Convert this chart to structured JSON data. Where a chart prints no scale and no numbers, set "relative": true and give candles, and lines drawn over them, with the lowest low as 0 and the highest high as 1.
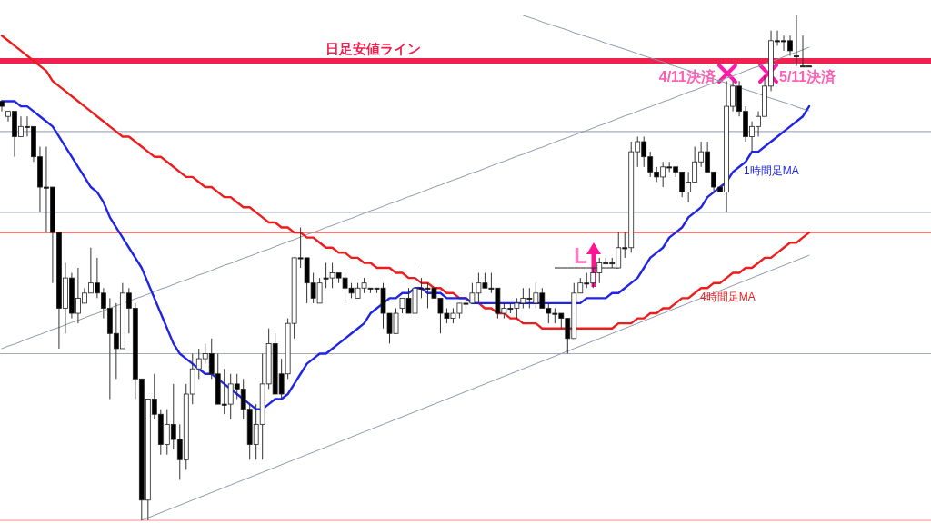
{
  "chart_data": {
    "type": "candlestick",
    "relative": true,
    "categories": [
      null,
      null,
      null,
      null,
      null,
      null,
      null,
      null,
      null,
      null,
      null,
      null,
      null,
      null,
      null,
      null,
      null,
      null,
      null,
      null,
      null,
      null,
      null,
      null,
      null,
      null,
      null,
      null,
      null,
      null,
      null,
      null,
      null,
      null,
      null,
      null,
      null,
      null,
      null,
      null,
      null,
      null,
      null,
      null,
      null,
      null,
      null,
      null,
      null,
      null,
      null,
      null,
      null,
      null,
      null,
      null,
      null,
      null,
      null,
      null,
      null,
      null,
      null,
      null,
      null,
      null,
      null,
      null,
      null,
      null,
      null,
      null,
      null,
      null,
      null,
      null,
      null,
      null,
      null,
      null,
      null,
      null,
      null,
      null,
      null,
      null,
      null,
      null,
      null,
      null,
      null,
      null,
      null,
      null,
      null,
      null,
      null,
      null,
      null,
      null,
      null,
      null,
      null,
      null,
      null,
      null,
      null,
      null,
      null,
      null,
      null,
      null,
      null,
      null,
      null,
      null,
      null,
      null,
      null,
      null,
      null,
      null,
      null,
      null,
      null,
      null,
      null,
      null
    ],
    "ohlc": [
      [
        0.83,
        0.83,
        0.81,
        0.82
      ],
      [
        0.8,
        0.81,
        0.79,
        0.81
      ],
      [
        0.81,
        0.81,
        0.72,
        0.76
      ],
      [
        0.76,
        0.8,
        0.76,
        0.78
      ],
      [
        0.78,
        0.8,
        0.76,
        0.78
      ],
      [
        0.78,
        0.78,
        0.71,
        0.72
      ],
      [
        0.72,
        0.74,
        0.61,
        0.66
      ],
      [
        0.66,
        0.74,
        0.57,
        0.66
      ],
      [
        0.66,
        0.66,
        0.47,
        0.57
      ],
      [
        0.57,
        0.57,
        0.34,
        0.42
      ],
      [
        0.42,
        0.51,
        0.37,
        0.48
      ],
      [
        0.48,
        0.49,
        0.4,
        0.41
      ],
      [
        0.41,
        0.5,
        0.39,
        0.44
      ],
      [
        0.43,
        0.46,
        0.43,
        0.45
      ],
      [
        0.45,
        0.54,
        0.45,
        0.47
      ],
      [
        0.47,
        0.52,
        0.44,
        0.45
      ],
      [
        0.45,
        0.46,
        0.4,
        0.42
      ],
      [
        0.42,
        0.44,
        0.24,
        0.37
      ],
      [
        0.37,
        0.43,
        0.28,
        0.34
      ],
      [
        0.34,
        0.47,
        0.34,
        0.45
      ],
      [
        0.45,
        0.46,
        0.37,
        0.42
      ],
      [
        0.42,
        0.43,
        0.24,
        0.28
      ],
      [
        0.28,
        0.28,
        0.0,
        0.04
      ],
      [
        0.04,
        0.24,
        0.0,
        0.24
      ],
      [
        0.24,
        0.29,
        0.2,
        0.21
      ],
      [
        0.21,
        0.22,
        0.13,
        0.15
      ],
      [
        0.15,
        0.22,
        0.13,
        0.19
      ],
      [
        0.19,
        0.27,
        0.14,
        0.16
      ],
      [
        0.16,
        0.19,
        0.08,
        0.12
      ],
      [
        0.12,
        0.27,
        0.1,
        0.25
      ],
      [
        0.25,
        0.33,
        0.23,
        0.3
      ],
      [
        0.3,
        0.34,
        0.28,
        0.32
      ],
      [
        0.32,
        0.35,
        0.31,
        0.33
      ],
      [
        0.33,
        0.36,
        0.28,
        0.29
      ],
      [
        0.29,
        0.33,
        0.23,
        0.23
      ],
      [
        0.23,
        0.3,
        0.21,
        0.23
      ],
      [
        0.23,
        0.29,
        0.2,
        0.27
      ],
      [
        0.27,
        0.29,
        0.24,
        0.26
      ],
      [
        0.26,
        0.28,
        0.2,
        0.22
      ],
      [
        0.22,
        0.23,
        0.12,
        0.15
      ],
      [
        0.15,
        0.23,
        0.12,
        0.19
      ],
      [
        0.19,
        0.33,
        0.12,
        0.27
      ],
      [
        0.27,
        0.38,
        0.26,
        0.35
      ],
      [
        0.35,
        0.37,
        0.25,
        0.25
      ],
      [
        0.29,
        0.32,
        0.24,
        0.25
      ],
      [
        0.29,
        0.4,
        0.28,
        0.39
      ],
      [
        0.39,
        0.52,
        0.36,
        0.52
      ],
      [
        0.52,
        0.58,
        0.5,
        0.52
      ],
      [
        0.52,
        0.52,
        0.43,
        0.47
      ],
      [
        0.47,
        0.49,
        0.43,
        0.44
      ],
      [
        0.43,
        0.48,
        0.43,
        0.47
      ],
      [
        0.48,
        0.51,
        0.46,
        0.48
      ],
      [
        0.48,
        0.51,
        0.46,
        0.49
      ],
      [
        0.49,
        0.49,
        0.47,
        0.48
      ],
      [
        0.48,
        0.49,
        0.43,
        0.46
      ],
      [
        0.46,
        0.47,
        0.44,
        0.45
      ],
      [
        0.44,
        0.47,
        0.44,
        0.46
      ],
      [
        0.46,
        0.48,
        0.45,
        0.47
      ],
      [
        0.46,
        0.46,
        0.45,
        0.46
      ],
      [
        0.46,
        0.46,
        0.45,
        0.46
      ],
      [
        0.46,
        0.47,
        0.38,
        0.41
      ],
      [
        0.41,
        0.41,
        0.35,
        0.37
      ],
      [
        0.37,
        0.42,
        0.37,
        0.41
      ],
      [
        0.42,
        0.44,
        0.41,
        0.44
      ],
      [
        0.44,
        0.46,
        0.41,
        0.41
      ],
      [
        0.41,
        0.51,
        0.41,
        0.46
      ],
      [
        0.46,
        0.48,
        0.44,
        0.46
      ],
      [
        0.46,
        0.47,
        0.42,
        0.46
      ],
      [
        0.46,
        0.46,
        0.44,
        0.44
      ],
      [
        0.44,
        0.44,
        0.37,
        0.41
      ],
      [
        0.41,
        0.42,
        0.39,
        0.4
      ],
      [
        0.4,
        0.42,
        0.39,
        0.41
      ],
      [
        0.41,
        0.43,
        0.4,
        0.43
      ],
      [
        0.43,
        0.44,
        0.42,
        0.43
      ],
      [
        0.43,
        0.47,
        0.43,
        0.45
      ],
      [
        0.45,
        0.49,
        0.43,
        0.47
      ],
      [
        0.47,
        0.49,
        0.46,
        0.46
      ],
      [
        0.46,
        0.49,
        0.45,
        0.46
      ],
      [
        0.46,
        0.46,
        0.4,
        0.41
      ],
      [
        0.41,
        0.43,
        0.4,
        0.42
      ],
      [
        0.42,
        0.43,
        0.41,
        0.42
      ],
      [
        0.42,
        0.44,
        0.4,
        0.43
      ],
      [
        0.43,
        0.46,
        0.42,
        0.44
      ],
      [
        0.44,
        0.46,
        0.42,
        0.44
      ],
      [
        0.43,
        0.47,
        0.42,
        0.45
      ],
      [
        0.45,
        0.46,
        0.42,
        0.42
      ],
      [
        0.42,
        0.43,
        0.39,
        0.41
      ],
      [
        0.41,
        0.42,
        0.39,
        0.41
      ],
      [
        0.41,
        0.41,
        0.38,
        0.4
      ],
      [
        0.4,
        0.4,
        0.33,
        0.36
      ],
      [
        0.36,
        0.47,
        0.36,
        0.45
      ],
      [
        0.45,
        0.48,
        0.45,
        0.47
      ],
      [
        0.47,
        0.49,
        0.46,
        0.47
      ],
      [
        0.47,
        0.5,
        0.46,
        0.49
      ],
      [
        0.49,
        0.52,
        0.47,
        0.51
      ],
      [
        0.51,
        0.52,
        0.51,
        0.51
      ],
      [
        0.51,
        0.52,
        0.5,
        0.51
      ],
      [
        0.5,
        0.57,
        0.5,
        0.54
      ],
      [
        0.54,
        0.57,
        0.52,
        0.54
      ],
      [
        0.54,
        0.75,
        0.53,
        0.73
      ],
      [
        0.73,
        0.76,
        0.7,
        0.75
      ],
      [
        0.75,
        0.76,
        0.7,
        0.72
      ],
      [
        0.72,
        0.73,
        0.68,
        0.69
      ],
      [
        0.69,
        0.7,
        0.67,
        0.68
      ],
      [
        0.68,
        0.71,
        0.66,
        0.7
      ],
      [
        0.7,
        0.71,
        0.69,
        0.7
      ],
      [
        0.7,
        0.7,
        0.68,
        0.69
      ],
      [
        0.69,
        0.69,
        0.64,
        0.65
      ],
      [
        0.65,
        0.69,
        0.63,
        0.67
      ],
      [
        0.67,
        0.74,
        0.67,
        0.71
      ],
      [
        0.71,
        0.75,
        0.7,
        0.73
      ],
      [
        0.73,
        0.75,
        0.69,
        0.69
      ],
      [
        0.69,
        0.69,
        0.65,
        0.66
      ],
      [
        0.66,
        0.66,
        0.65,
        0.65
      ],
      [
        0.65,
        0.87,
        0.61,
        0.82
      ],
      [
        0.82,
        0.87,
        0.81,
        0.86
      ],
      [
        0.86,
        0.87,
        0.8,
        0.81
      ],
      [
        0.81,
        0.82,
        0.75,
        0.76
      ],
      [
        0.76,
        0.79,
        0.73,
        0.78
      ],
      [
        0.78,
        0.81,
        0.76,
        0.8
      ],
      [
        0.8,
        0.88,
        0.8,
        0.86
      ],
      [
        0.86,
        0.97,
        0.85,
        0.95
      ],
      [
        0.95,
        0.97,
        0.94,
        0.95
      ],
      [
        0.95,
        0.96,
        0.93,
        0.95
      ],
      [
        0.95,
        0.96,
        0.92,
        0.93
      ],
      [
        0.92,
        1.0,
        0.9,
        0.92
      ],
      [
        0.9,
        0.96,
        0.9,
        0.9
      ],
      [
        0.9,
        0.9,
        0.9,
        0.9
      ]
    ],
    "series": [
      {
        "type": "line",
        "color": "#8f98aa",
        "values": [
          0.34,
          0.345,
          0.349,
          0.354,
          0.359,
          0.364,
          0.368,
          0.373,
          0.378,
          0.382,
          0.387,
          0.392,
          0.396,
          0.401,
          0.406,
          0.41,
          0.415,
          0.42,
          0.425,
          0.429,
          0.434,
          0.439,
          0.443,
          0.448,
          0.453,
          0.458,
          0.462,
          0.467,
          0.472,
          0.476,
          0.481,
          0.486,
          0.49,
          0.495,
          0.5,
          0.505,
          0.509,
          0.514,
          0.519,
          0.523,
          0.528,
          0.533,
          0.537,
          0.542,
          0.547,
          0.552,
          0.556,
          0.561,
          0.566,
          0.57,
          0.575,
          0.58,
          0.584,
          0.589,
          0.594,
          0.598,
          0.603,
          0.608,
          0.613,
          0.617,
          0.622,
          0.627,
          0.631,
          0.636,
          0.641,
          0.645,
          0.65,
          0.655,
          0.66,
          0.664,
          0.669,
          0.674,
          0.678,
          0.683,
          0.688,
          0.692,
          0.697,
          0.702,
          0.707,
          0.711,
          0.716,
          0.721,
          0.725,
          0.73,
          0.735,
          0.739,
          0.744,
          0.749,
          0.754,
          0.758,
          0.763,
          0.768,
          0.772,
          0.777,
          0.782,
          0.786,
          0.791,
          0.796,
          0.801,
          0.805,
          0.81,
          0.815,
          0.819,
          0.824,
          0.829,
          0.833,
          0.838,
          0.843,
          0.848,
          0.852,
          0.857,
          0.862,
          0.866,
          0.871,
          0.876,
          0.88,
          0.885,
          0.89,
          0.895,
          0.899,
          0.904,
          0.909,
          0.913,
          0.918,
          0.923,
          0.927,
          0.932,
          0.937
        ]
      },
      {
        "type": "line",
        "color": "#8f98aa",
        "values": [
          null,
          null,
          null,
          null,
          null,
          null,
          null,
          null,
          null,
          null,
          null,
          null,
          null,
          null,
          null,
          null,
          null,
          null,
          null,
          null,
          null,
          null,
          0.0,
          0.005,
          0.01,
          0.015,
          0.02,
          0.025,
          0.03,
          0.035,
          0.04,
          0.045,
          0.05,
          0.055,
          0.06,
          0.065,
          0.07,
          0.075,
          0.08,
          0.085,
          0.09,
          0.095,
          0.1,
          0.105,
          0.11,
          0.115,
          0.12,
          0.125,
          0.13,
          0.135,
          0.14,
          0.145,
          0.15,
          0.155,
          0.16,
          0.165,
          0.17,
          0.175,
          0.18,
          0.185,
          0.19,
          0.195,
          0.2,
          0.205,
          0.21,
          0.215,
          0.22,
          0.225,
          0.23,
          0.235,
          0.24,
          0.245,
          0.25,
          0.255,
          0.26,
          0.265,
          0.27,
          0.275,
          0.28,
          0.285,
          0.29,
          0.295,
          0.3,
          0.305,
          0.31,
          0.315,
          0.32,
          0.325,
          0.33,
          0.335,
          0.34,
          0.345,
          0.35,
          0.355,
          0.36,
          0.365,
          0.37,
          0.375,
          0.38,
          0.385,
          0.39,
          0.395,
          0.4,
          0.405,
          0.41,
          0.415,
          0.42,
          0.425,
          0.43,
          0.435,
          0.44,
          0.445,
          0.45,
          0.455,
          0.46,
          0.465,
          0.47,
          0.475,
          0.48,
          0.485,
          0.49,
          0.495,
          0.5,
          0.505,
          0.51,
          0.515,
          0.52,
          0.525
        ]
      },
      {
        "type": "line",
        "color": "#8f98aa",
        "values": [
          null,
          null,
          null,
          null,
          null,
          null,
          null,
          null,
          null,
          null,
          null,
          null,
          null,
          null,
          null,
          null,
          null,
          null,
          null,
          null,
          null,
          null,
          null,
          null,
          null,
          null,
          null,
          null,
          null,
          null,
          null,
          null,
          null,
          null,
          null,
          null,
          null,
          null,
          null,
          null,
          null,
          null,
          null,
          null,
          null,
          null,
          null,
          null,
          null,
          null,
          null,
          null,
          null,
          null,
          null,
          null,
          null,
          null,
          null,
          null,
          null,
          null,
          null,
          null,
          null,
          null,
          null,
          null,
          null,
          null,
          null,
          null,
          null,
          null,
          null,
          null,
          null,
          null,
          null,
          null,
          null,
          null,
          1.0,
          0.996,
          0.992,
          0.987,
          0.983,
          0.979,
          0.975,
          0.971,
          0.966,
          0.962,
          0.958,
          0.954,
          0.95,
          0.945,
          0.941,
          0.937,
          0.933,
          0.929,
          0.924,
          0.92,
          0.916,
          0.912,
          0.908,
          0.903,
          0.899,
          0.895,
          0.891,
          0.887,
          0.882,
          0.878,
          0.874,
          0.87,
          0.866,
          0.861,
          0.857,
          0.853,
          0.849,
          0.845,
          0.84,
          0.836,
          0.832,
          0.828,
          0.824,
          0.819,
          0.815,
          0.811
        ]
      },
      {
        "type": "line",
        "color": "#222222",
        "values": [
          null,
          null,
          null,
          null,
          null,
          null,
          null,
          null,
          null,
          null,
          null,
          null,
          null,
          null,
          null,
          null,
          null,
          null,
          null,
          null,
          null,
          null,
          null,
          null,
          null,
          null,
          null,
          null,
          null,
          null,
          null,
          null,
          null,
          null,
          null,
          null,
          null,
          null,
          null,
          null,
          null,
          null,
          null,
          null,
          null,
          null,
          null,
          null,
          null,
          null,
          null,
          null,
          null,
          null,
          null,
          null,
          null,
          null,
          null,
          null,
          null,
          null,
          null,
          null,
          null,
          null,
          null,
          null,
          null,
          null,
          null,
          null,
          null,
          null,
          null,
          null,
          null,
          null,
          null,
          null,
          null,
          null,
          null,
          null,
          null,
          null,
          null,
          0.5,
          0.5,
          0.5,
          0.5,
          0.5,
          0.5,
          0.5,
          0.5,
          0.5,
          0.5,
          0.5,
          null,
          null,
          null,
          null,
          null,
          null,
          null,
          null,
          null,
          null,
          null,
          null,
          null,
          null,
          null,
          null,
          null,
          null,
          null,
          null,
          null,
          null,
          null,
          null,
          null,
          null,
          null,
          null,
          null,
          null
        ]
      },
      {
        "type": "line",
        "name": "4時間足MA",
        "color": "#ee1c1c",
        "values": [
          0.96,
          0.95,
          0.94,
          0.93,
          0.92,
          0.91,
          0.9,
          0.89,
          0.87,
          0.86,
          0.85,
          0.84,
          0.83,
          0.82,
          0.81,
          0.8,
          0.79,
          0.78,
          0.77,
          0.76,
          0.76,
          0.75,
          0.74,
          0.73,
          0.72,
          0.72,
          0.71,
          0.7,
          0.69,
          0.68,
          0.68,
          0.67,
          0.66,
          0.66,
          0.65,
          0.64,
          0.64,
          0.63,
          0.62,
          0.62,
          0.61,
          0.6,
          0.59,
          0.59,
          0.58,
          0.58,
          0.57,
          0.57,
          0.56,
          0.56,
          0.55,
          0.54,
          0.54,
          0.53,
          0.53,
          0.52,
          0.52,
          0.51,
          0.51,
          0.5,
          0.5,
          0.5,
          0.49,
          0.49,
          0.48,
          0.48,
          0.47,
          0.47,
          0.46,
          0.46,
          0.45,
          0.45,
          0.44,
          0.44,
          0.43,
          0.43,
          0.42,
          0.42,
          0.41,
          0.41,
          0.4,
          0.4,
          0.39,
          0.39,
          0.39,
          0.38,
          0.38,
          0.38,
          0.38,
          0.38,
          0.38,
          0.38,
          0.38,
          0.38,
          0.38,
          0.38,
          0.38,
          0.39,
          0.39,
          0.39,
          0.4,
          0.4,
          0.41,
          0.41,
          0.42,
          0.42,
          0.43,
          0.44,
          0.44,
          0.45,
          0.46,
          0.46,
          0.47,
          0.47,
          0.48,
          0.49,
          0.49,
          0.5,
          0.5,
          0.51,
          0.52,
          0.52,
          0.53,
          0.54,
          0.55,
          0.55,
          0.56,
          0.57
        ]
      },
      {
        "type": "line",
        "name": "1時間足MA",
        "color": "#1f24e6",
        "values": [
          0.83,
          0.83,
          0.83,
          0.82,
          0.82,
          0.81,
          0.8,
          0.79,
          0.78,
          0.76,
          0.74,
          0.72,
          0.7,
          0.68,
          0.66,
          0.65,
          0.63,
          0.6,
          0.58,
          0.56,
          0.54,
          0.52,
          0.5,
          0.47,
          0.44,
          0.41,
          0.38,
          0.35,
          0.33,
          0.32,
          0.31,
          0.3,
          0.29,
          0.29,
          0.28,
          0.27,
          0.26,
          0.25,
          0.24,
          0.23,
          0.22,
          0.22,
          0.23,
          0.24,
          0.24,
          0.25,
          0.27,
          0.29,
          0.31,
          0.32,
          0.33,
          0.33,
          0.34,
          0.35,
          0.36,
          0.37,
          0.38,
          0.39,
          0.41,
          0.42,
          0.43,
          0.44,
          0.44,
          0.45,
          0.45,
          0.46,
          0.46,
          0.45,
          0.45,
          0.45,
          0.44,
          0.44,
          0.44,
          0.44,
          0.43,
          0.43,
          0.43,
          0.43,
          0.43,
          0.43,
          0.43,
          0.43,
          0.43,
          0.43,
          0.43,
          0.43,
          0.43,
          0.43,
          0.43,
          0.43,
          0.43,
          0.43,
          0.44,
          0.44,
          0.44,
          0.44,
          0.45,
          0.45,
          0.46,
          0.47,
          0.48,
          0.5,
          0.52,
          0.53,
          0.54,
          0.56,
          0.57,
          0.58,
          0.6,
          0.61,
          0.62,
          0.64,
          0.65,
          0.66,
          0.67,
          0.69,
          0.7,
          0.71,
          0.73,
          0.73,
          0.74,
          0.75,
          0.76,
          0.77,
          0.78,
          0.79,
          0.8,
          0.82
        ]
      }
    ],
    "ref_lines": [
      {
        "axis": "y",
        "value": 0.91,
        "label": "日足安値ライン",
        "color": "#f0204f"
      },
      {
        "axis": "y",
        "value": 0.77,
        "color": "#a3abbb"
      },
      {
        "axis": "y",
        "value": 0.61,
        "color": "#a3abbb"
      },
      {
        "axis": "y",
        "value": 0.57,
        "color": "#ff4a4a"
      },
      {
        "axis": "y",
        "value": 0.33,
        "color": "#a3abbb"
      },
      {
        "axis": "y",
        "value": 0.0,
        "color": "#ff8c8c"
      }
    ],
    "annotations": [
      "4/11決済",
      "5/11決済",
      "L"
    ]
  }
}
